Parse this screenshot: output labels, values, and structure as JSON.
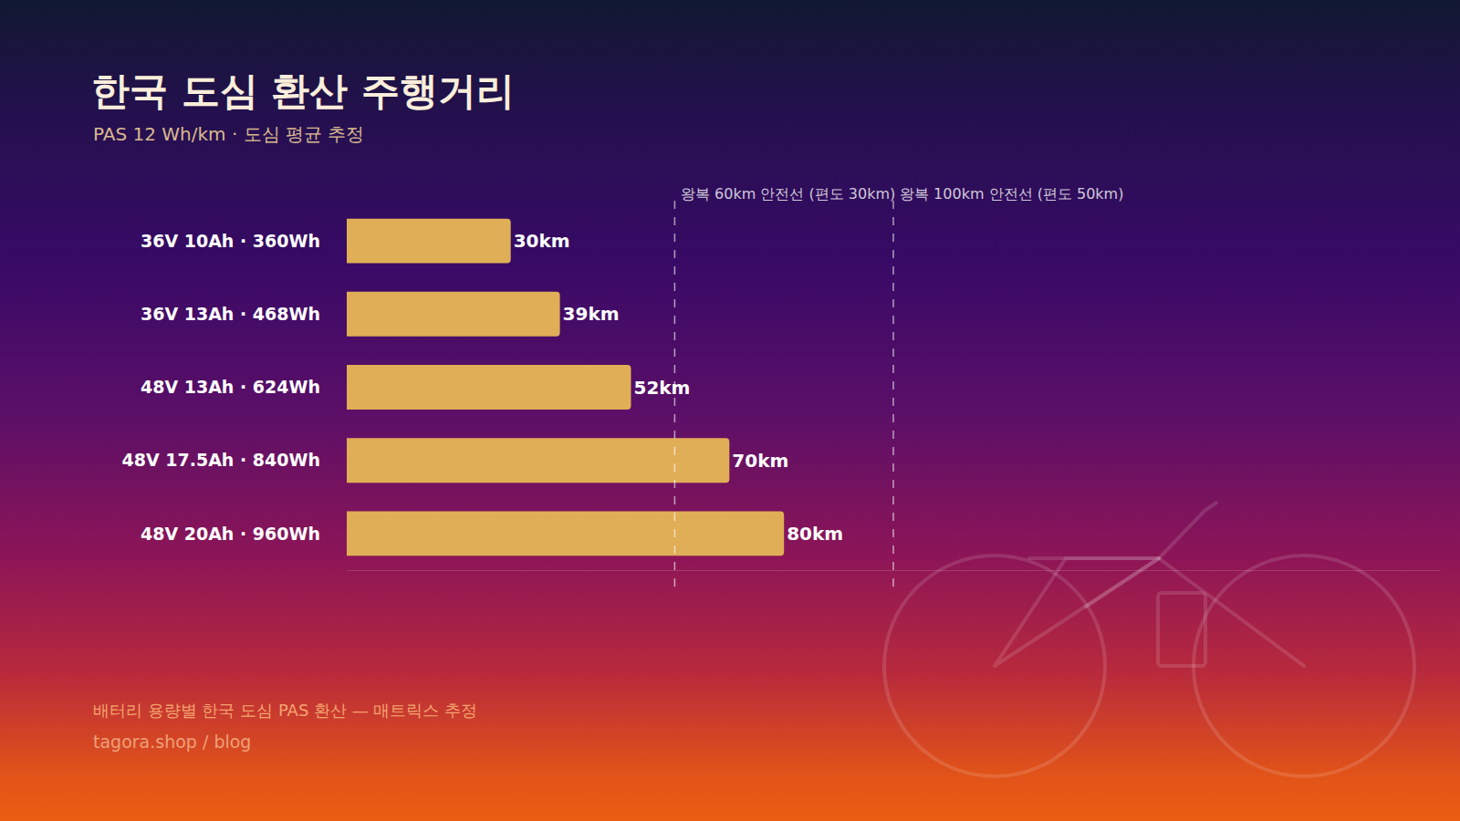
{
  "chart_data": {
    "type": "bar",
    "title": "한국 도심 환산 주행거리",
    "subtitle": "PAS 12 Wh/km · 도심 평균 추정",
    "orientation": "horizontal",
    "categories": [
      "36V 10Ah · 360Wh",
      "36V 13Ah · 468Wh",
      "48V 13Ah · 624Wh",
      "48V 17.5Ah · 840Wh",
      "48V 20Ah · 960Wh"
    ],
    "values": [
      30,
      39,
      52,
      70,
      80
    ],
    "value_labels": [
      "30km",
      "39km",
      "52km",
      "70km",
      "80km"
    ],
    "data_labels": true,
    "color": "#e0ae56",
    "xlim": [
      0,
      200
    ],
    "xticks": [],
    "tick_labels": "y",
    "grid": false,
    "annotations": [
      {
        "x": 60,
        "text": "왕복 60km 안전선 (편도 30km)"
      },
      {
        "x": 100,
        "text": "왕복 100km 안전선 (편도 50km)"
      }
    ],
    "caption": "배터리 용량별 한국 도심 PAS 환산 — 매트릭스 추정",
    "source": "tagora.shop / blog"
  }
}
